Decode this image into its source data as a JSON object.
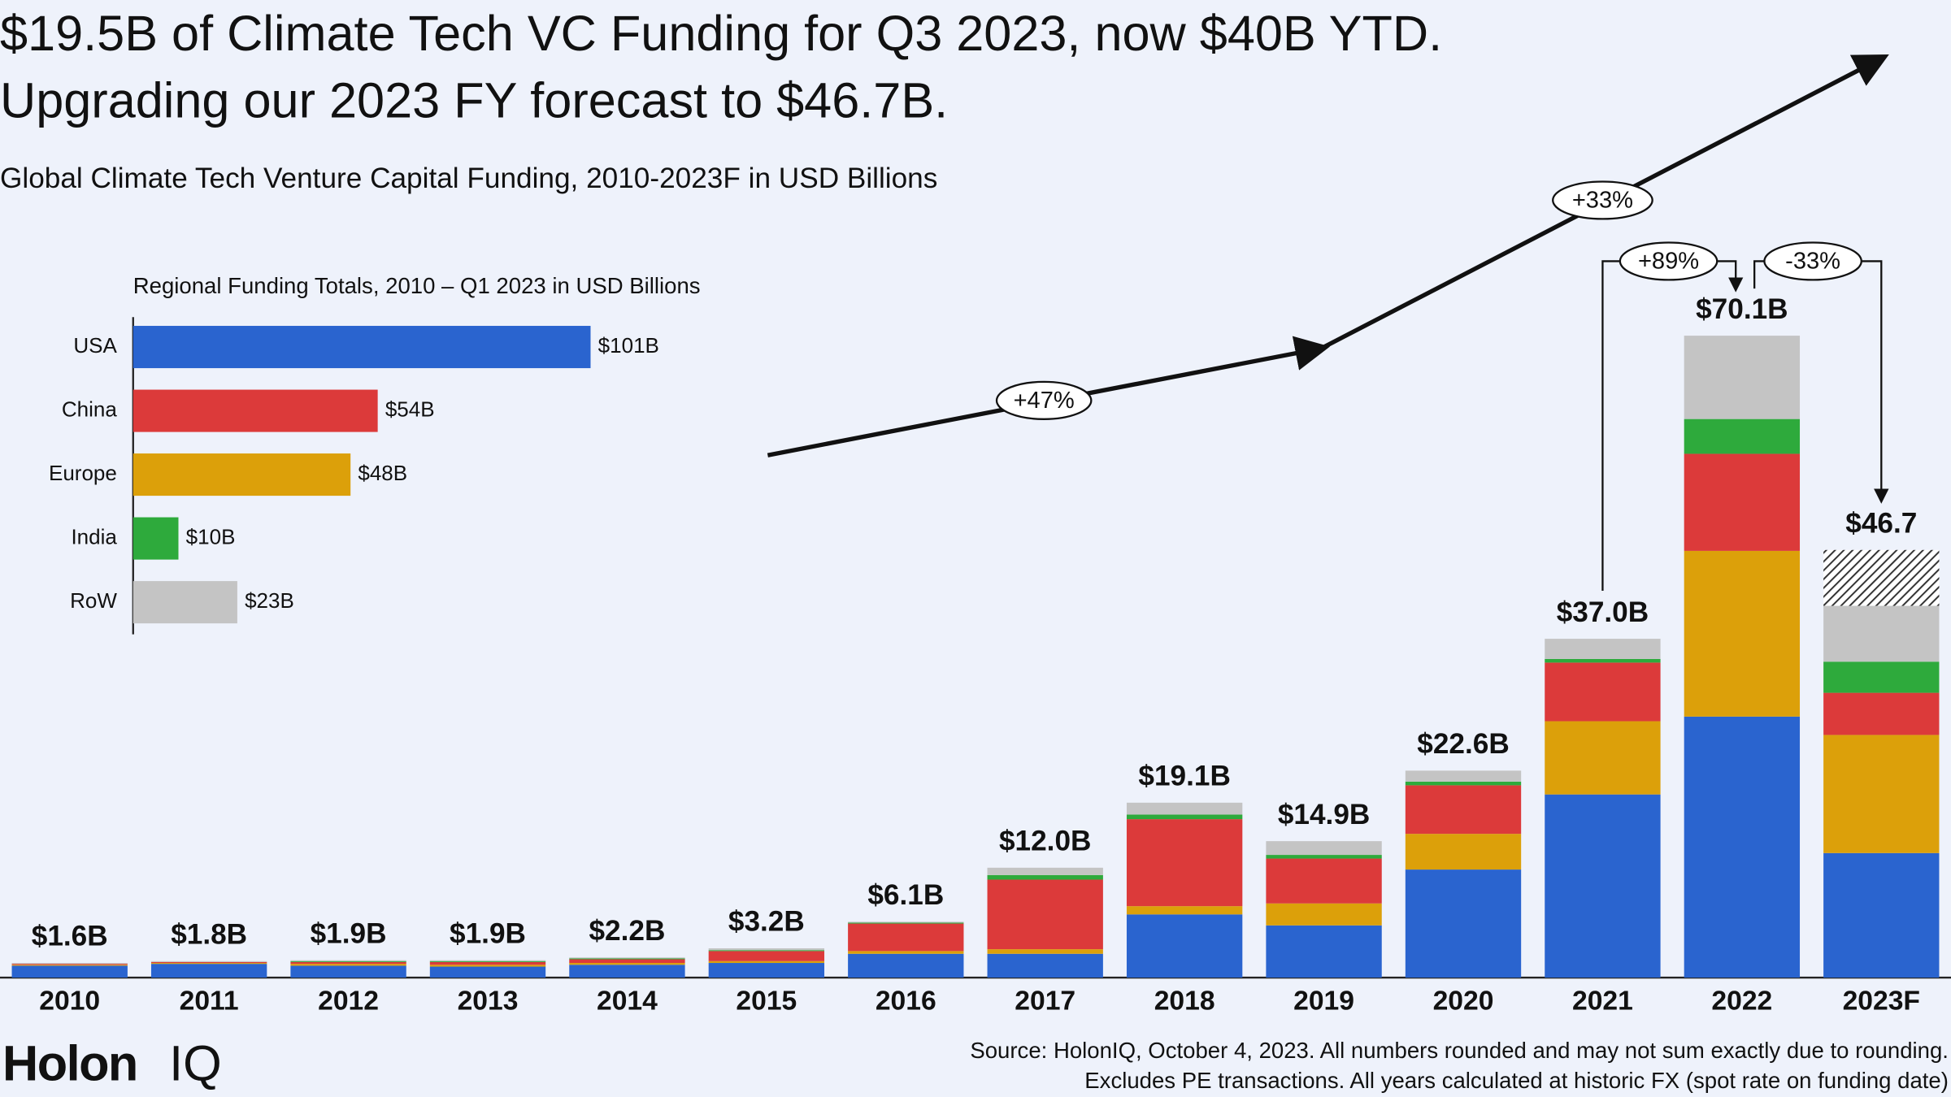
{
  "chart_data": [
    {
      "type": "stacked-bar",
      "title": [
        "$19.5B of Climate Tech VC Funding for Q3 2023, now $40B YTD.",
        "Upgrading our 2023 FY forecast to $46.7B."
      ],
      "subtitle": "Global Climate Tech Venture Capital Funding, 2010-2023F in USD Billions",
      "categories": [
        "2010",
        "2011",
        "2012",
        "2013",
        "2014",
        "2015",
        "2016",
        "2017",
        "2018",
        "2019",
        "2020",
        "2021",
        "2022",
        "2023F"
      ],
      "series": [
        {
          "color": "#2a64cf",
          "values": [
            1.3,
            1.5,
            1.3,
            1.2,
            1.4,
            1.6,
            2.6,
            2.6,
            6.9,
            5.7,
            11.8,
            20.0,
            28.5,
            13.6
          ]
        },
        {
          "color": "#dca00a",
          "values": [
            0.1,
            0.1,
            0.2,
            0.2,
            0.2,
            0.2,
            0.3,
            0.5,
            0.9,
            2.4,
            3.9,
            8.0,
            18.1,
            12.9
          ]
        },
        {
          "color": "#dc3a3a",
          "values": [
            0.1,
            0.1,
            0.2,
            0.3,
            0.4,
            1.1,
            3.0,
            7.6,
            9.5,
            4.9,
            5.3,
            6.4,
            10.6,
            4.6
          ]
        },
        {
          "color": "#2eaa3c",
          "values": [
            0.0,
            0.0,
            0.1,
            0.1,
            0.1,
            0.1,
            0.1,
            0.5,
            0.5,
            0.4,
            0.4,
            0.4,
            3.8,
            3.4
          ]
        },
        {
          "color": "#c4c4c4",
          "values": [
            0.1,
            0.1,
            0.1,
            0.1,
            0.1,
            0.2,
            0.1,
            0.8,
            1.3,
            1.5,
            1.2,
            2.2,
            9.1,
            6.1
          ]
        },
        {
          "color": "#333333",
          "pattern": "hatch",
          "values": [
            null,
            null,
            null,
            null,
            null,
            null,
            null,
            null,
            null,
            null,
            null,
            null,
            null,
            6.1
          ]
        }
      ],
      "totals": {
        "values": [
          1.6,
          1.8,
          1.9,
          1.9,
          2.2,
          3.2,
          6.1,
          12.0,
          19.1,
          14.9,
          22.6,
          37.0,
          70.1,
          46.7
        ],
        "value_labels": [
          "$1.6B",
          "$1.8B",
          "$1.9B",
          "$1.9B",
          "$2.2B",
          "$3.2B",
          "$6.1B",
          "$12.0B",
          "$19.1B",
          "$14.9B",
          "$22.6B",
          "$37.0B",
          "$70.1B",
          "$46.7"
        ]
      },
      "ylim": [
        0,
        80
      ],
      "annotations": [
        "+47%",
        "+33%",
        "+89%",
        "-33%"
      ]
    },
    {
      "type": "hbar",
      "title": "Regional Funding Totals, 2010 – Q1 2023 in USD Billions",
      "categories": [
        "USA",
        "China",
        "Europe",
        "India",
        "RoW"
      ],
      "values": [
        101,
        54,
        48,
        10,
        23
      ],
      "value_labels": [
        "$101B",
        "$54B",
        "$48B",
        "$10B",
        "$23B"
      ],
      "colors": [
        "#2a64cf",
        "#dc3a3a",
        "#dca00a",
        "#2eaa3c",
        "#c4c4c4"
      ],
      "xlim": [
        0,
        110
      ]
    }
  ],
  "source": [
    "Source: HolonIQ, October 4, 2023. All numbers rounded and may not sum exactly due to rounding.",
    "Excludes PE transactions. All years calculated at historic FX (spot rate on funding date)"
  ],
  "logo": [
    "Holon",
    "IQ"
  ]
}
